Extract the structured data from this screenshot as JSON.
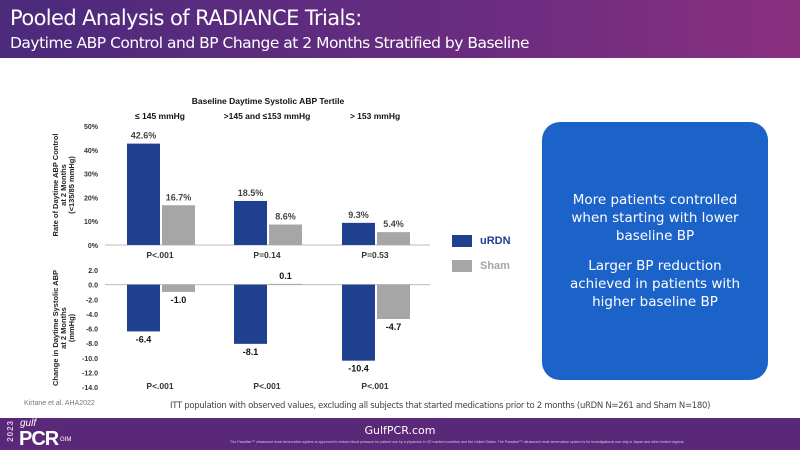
{
  "header": {
    "title": "Pooled Analysis of RADIANCE Trials:",
    "subtitle": "Daytime ABP Control and BP Change at 2 Months Stratified by Baseline"
  },
  "colors": {
    "urdn": "#1f3f8f",
    "sham": "#a6a6a6",
    "callout": "#1c63c9",
    "header": "#5a2879"
  },
  "chart_data": [
    {
      "type": "bar",
      "title": "Baseline Daytime Systolic ABP Tertile",
      "categories": [
        "≤ 145 mmHg",
        ">145 and ≤153 mmHg",
        "> 153 mmHg"
      ],
      "ylabel_lines": [
        "Rate of Daytime ABP Control",
        "at 2 Months",
        "(<135/85 mmHg)"
      ],
      "ylim": [
        0,
        50
      ],
      "yticks": [
        "0%",
        "10%",
        "20%",
        "30%",
        "40%",
        "50%"
      ],
      "yticks_values": [
        0,
        10,
        20,
        30,
        40,
        50
      ],
      "series": [
        {
          "name": "uRDN",
          "values": [
            42.6,
            18.5,
            9.3
          ],
          "labels": [
            "42.6%",
            "18.5%",
            "9.3%"
          ]
        },
        {
          "name": "Sham",
          "values": [
            16.7,
            8.6,
            5.4
          ],
          "labels": [
            "16.7%",
            "8.6%",
            "5.4%"
          ]
        }
      ],
      "pvalues": [
        "P<.001",
        "P=0.14",
        "P=0.53"
      ],
      "grid": false
    },
    {
      "type": "bar",
      "ylabel_lines": [
        "Change in Daytime Systolic ABP",
        "at 2 Months",
        "(mmHg)"
      ],
      "ylim": [
        -14,
        2
      ],
      "yticks": [
        "2.0",
        "0.0",
        "-2.0",
        "-4.0",
        "-6.0",
        "-8.0",
        "-10.0",
        "-12.0",
        "-14.0"
      ],
      "yticks_values": [
        2,
        0,
        -2,
        -4,
        -6,
        -8,
        -10,
        -12,
        -14
      ],
      "series": [
        {
          "name": "uRDN",
          "values": [
            -6.4,
            -8.1,
            -10.4
          ],
          "labels": [
            "-6.4",
            "-8.1",
            "-10.4"
          ]
        },
        {
          "name": "Sham",
          "values": [
            -1.0,
            0.1,
            -4.7
          ],
          "labels": [
            "-1.0",
            "0.1",
            "-4.7"
          ]
        }
      ],
      "pvalues": [
        "P<.001",
        "P<.001",
        "P<.001"
      ],
      "grid": false
    }
  ],
  "legend": {
    "urdn": "uRDN",
    "sham": "Sham"
  },
  "callout": {
    "line1": "More patients controlled when starting with lower baseline BP",
    "line2": "Larger BP reduction achieved in patients with higher baseline BP"
  },
  "citation": "Kirtane et al. AHA2022",
  "note": "ITT population with observed values, excluding all subjects that started medications prior to 2 months (uRDN N=261 and Sham N=180)",
  "footer": {
    "year": "2023",
    "logo_gulf": "gulf",
    "logo_pcr": "PCR",
    "logo_sub": "GIM",
    "site": "GulfPCR.com",
    "fine_print": "The Paradise™ ultrasound renal denervation system is approved to reduce blood pressure for patient use by a physician in CE marked countries and the United States. The Paradise™ ultrasound renal denervation system is for investigational use only in Japan and other limited regions."
  }
}
